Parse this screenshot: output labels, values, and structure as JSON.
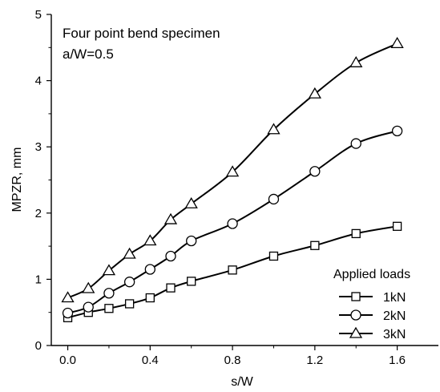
{
  "chart_data": {
    "type": "line",
    "title": "",
    "xlabel": "s/W",
    "ylabel": "MPZR, mm",
    "xlim": [
      -0.08,
      1.8
    ],
    "ylim": [
      0,
      5
    ],
    "xticks": [
      0.0,
      0.4,
      0.8,
      1.2,
      1.6
    ],
    "xtick_labels": [
      "0.0",
      "0.4",
      "0.8",
      "1.2",
      "1.6"
    ],
    "yticks": [
      0,
      1,
      2,
      3,
      4,
      5
    ],
    "ytick_labels": [
      "0",
      "1",
      "2",
      "3",
      "4",
      "5"
    ],
    "annotations": [
      "Four point bend specimen",
      "a/W=0.5"
    ],
    "legend_title": "Applied loads",
    "legend_position": "bottom-right",
    "grid": false,
    "x": [
      0.0,
      0.1,
      0.2,
      0.3,
      0.4,
      0.5,
      0.6,
      0.8,
      1.0,
      1.2,
      1.4,
      1.6
    ],
    "series": [
      {
        "name": "1kN",
        "marker": "square",
        "values": [
          0.42,
          0.5,
          0.56,
          0.63,
          0.72,
          0.87,
          0.97,
          1.14,
          1.35,
          1.51,
          1.69,
          1.8
        ]
      },
      {
        "name": "2kN",
        "marker": "circle",
        "values": [
          0.49,
          0.58,
          0.79,
          0.96,
          1.15,
          1.35,
          1.58,
          1.84,
          2.21,
          2.63,
          3.05,
          3.24
        ]
      },
      {
        "name": "3kN",
        "marker": "triangle",
        "values": [
          0.72,
          0.86,
          1.13,
          1.38,
          1.58,
          1.9,
          2.14,
          2.62,
          3.26,
          3.8,
          4.27,
          4.56
        ]
      }
    ]
  }
}
